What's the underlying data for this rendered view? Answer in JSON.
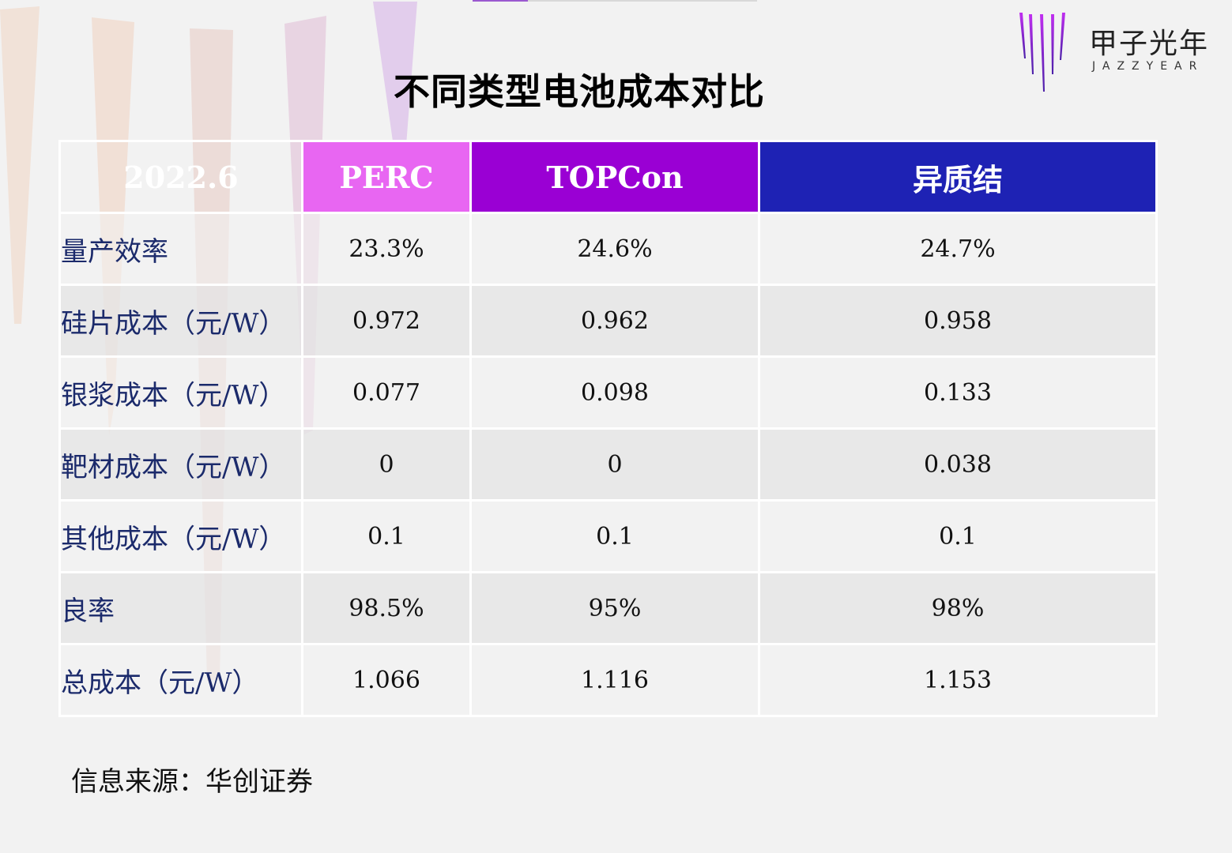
{
  "title": "不同类型电池成本对比",
  "logo": {
    "cn": "甲子光年",
    "en": "JAZZYEAR"
  },
  "colors": {
    "perc": "#e866f2",
    "topcon": "#9a00d4",
    "hjt": "#1e22b4",
    "label_text": "#1b2a6b"
  },
  "chart_data": {
    "type": "table",
    "corner": "2022.6",
    "columns": [
      "PERC",
      "TOPCon",
      "异质结"
    ],
    "rows": [
      {
        "label": "量产效率",
        "values": [
          "23.3%",
          "24.6%",
          "24.7%"
        ]
      },
      {
        "label": "硅片成本（元/W）",
        "values": [
          "0.972",
          "0.962",
          "0.958"
        ]
      },
      {
        "label": "银浆成本（元/W）",
        "values": [
          "0.077",
          "0.098",
          "0.133"
        ]
      },
      {
        "label": "靶材成本（元/W）",
        "values": [
          "0",
          "0",
          "0.038"
        ]
      },
      {
        "label": "其他成本（元/W）",
        "values": [
          "0.1",
          "0.1",
          "0.1"
        ]
      },
      {
        "label": "良率",
        "values": [
          "98.5%",
          "95%",
          "98%"
        ]
      },
      {
        "label": "总成本（元/W）",
        "values": [
          "1.066",
          "1.116",
          "1.153"
        ]
      }
    ]
  },
  "source": "信息来源：华创证券"
}
